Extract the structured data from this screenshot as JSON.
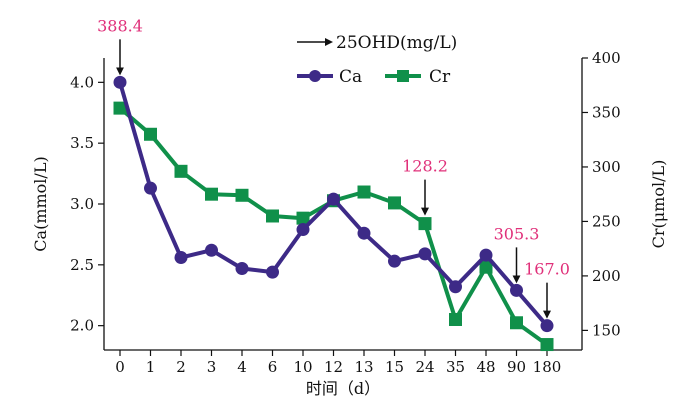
{
  "chart_data": {
    "type": "line",
    "categories": [
      "0",
      "1",
      "2",
      "3",
      "4",
      "6",
      "10",
      "12",
      "13",
      "15",
      "24",
      "35",
      "48",
      "90",
      "180"
    ],
    "xlabel": "时间（d）",
    "y_left": {
      "label": "Ca(mmol/L)",
      "ylim": [
        1.8,
        4.2
      ],
      "ticks": [
        "2.0",
        "2.5",
        "3.0",
        "3.5",
        "4.0"
      ]
    },
    "y_right": {
      "label": "Cr(μmol/L)",
      "ylim": [
        132,
        400
      ],
      "ticks": [
        "150",
        "200",
        "250",
        "300",
        "350",
        "400"
      ]
    },
    "series": [
      {
        "name": "Ca",
        "axis": "left",
        "color": "#3d2a87",
        "marker": "circle",
        "values": [
          4.0,
          3.13,
          2.56,
          2.62,
          2.47,
          2.44,
          2.79,
          3.04,
          2.76,
          2.53,
          2.59,
          2.32,
          2.58,
          2.29,
          2.0
        ]
      },
      {
        "name": "Cr",
        "axis": "right",
        "color": "#10904a",
        "marker": "square",
        "values": [
          354,
          330,
          296,
          275,
          274,
          255,
          253,
          269,
          277,
          267,
          248,
          160,
          208,
          157,
          137
        ]
      }
    ],
    "legend": {
      "position": "top-right",
      "arrow_label": "25OHD(mg/L)"
    },
    "annotations": [
      {
        "text": "388.4",
        "category": "0"
      },
      {
        "text": "128.2",
        "category": "24"
      },
      {
        "text": "305.3",
        "category": "90"
      },
      {
        "text": "167.0",
        "category": "180"
      }
    ],
    "annotation_color": "#e0307a",
    "grid": false
  }
}
